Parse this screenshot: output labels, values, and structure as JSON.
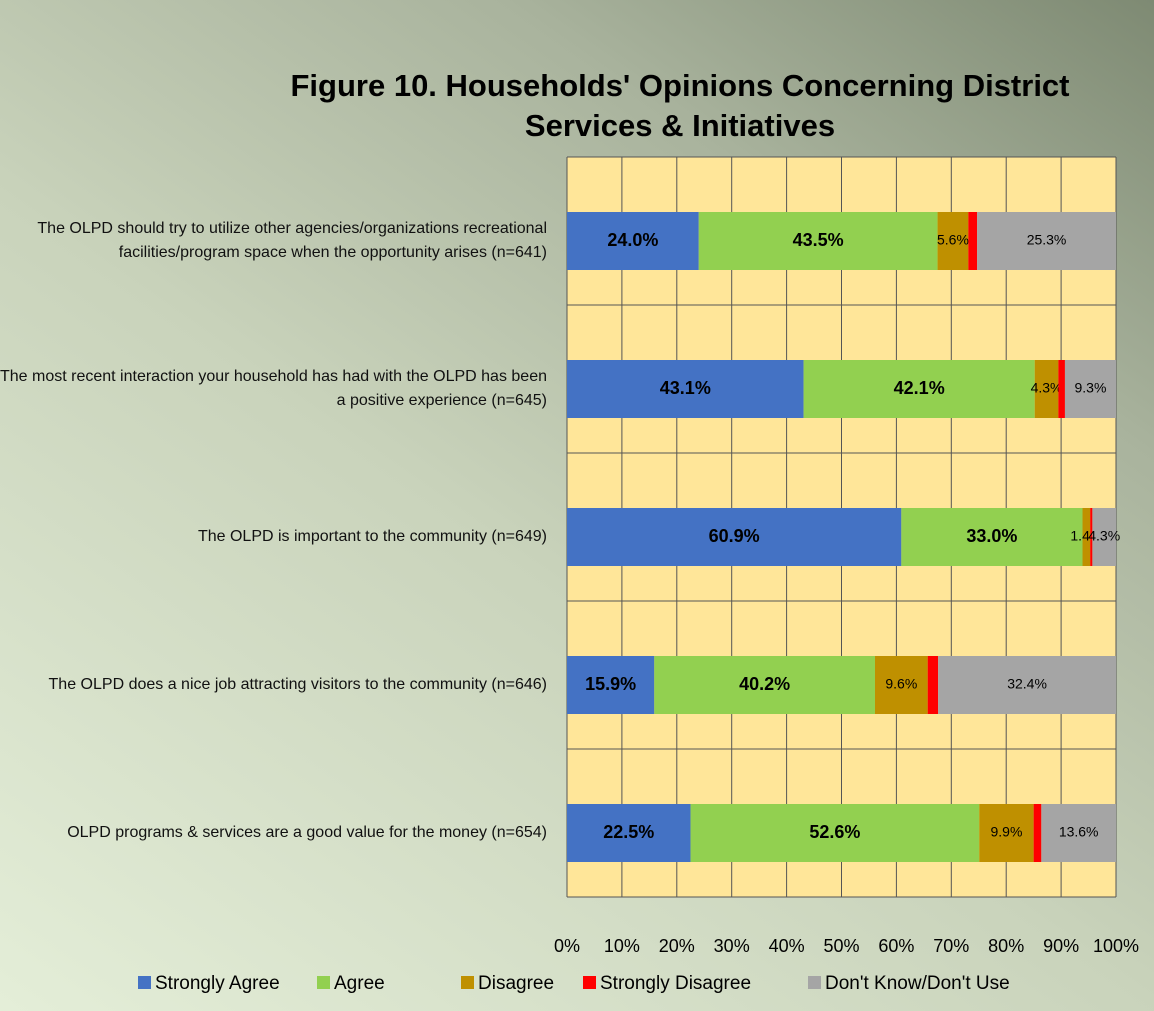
{
  "chart_data": {
    "type": "stacked_bar_horizontal",
    "title": [
      "Figure 10.  Households' Opinions Concerning District",
      "Services & Initiatives"
    ],
    "categories": [
      "The OLPD should try to utilize other agencies/organizations recreational facilities/program space when the opportunity arises (n=641)",
      "The most recent interaction your household has had with the OLPD has been a positive experience (n=645)",
      "The OLPD is important to the community (n=649)",
      "The OLPD does a nice job attracting visitors to the community (n=646)",
      "OLPD programs & services are a good value for the money (n=654)"
    ],
    "series": [
      {
        "name": "Strongly Agree",
        "color": "#4472c4",
        "values": [
          24.0,
          43.1,
          60.9,
          15.9,
          22.5
        ],
        "value_labels": [
          "24.0%",
          "43.1%",
          "60.9%",
          "15.9%",
          "22.5%"
        ]
      },
      {
        "name": "Agree",
        "color": "#92d050",
        "values": [
          43.5,
          42.1,
          33.0,
          40.2,
          52.6
        ],
        "value_labels": [
          "43.5%",
          "42.1%",
          "33.0%",
          "40.2%",
          "52.6%"
        ]
      },
      {
        "name": "Disagree",
        "color": "#bf9000",
        "values": [
          5.6,
          4.3,
          1.4,
          9.6,
          9.9
        ],
        "value_labels": [
          "5.6%",
          "4.3%",
          "1.4%",
          "9.6%",
          "9.9%"
        ]
      },
      {
        "name": "Strongly Disagree",
        "color": "#ff0000",
        "values": [
          1.6,
          1.2,
          0.4,
          1.9,
          1.4
        ]
      },
      {
        "name": "Don't Know/Don't Use",
        "color": "#a5a5a5",
        "values": [
          25.3,
          9.3,
          4.3,
          32.4,
          13.6
        ],
        "value_labels": [
          "25.3%",
          "9.3%",
          "4.3%",
          "32.4%",
          "13.6%"
        ]
      }
    ],
    "xlim": [
      0,
      100
    ],
    "xticks": [
      {
        "value": 0,
        "label": "0%"
      },
      {
        "value": 10,
        "label": "10%"
      },
      {
        "value": 20,
        "label": "20%"
      },
      {
        "value": 30,
        "label": "30%"
      },
      {
        "value": 40,
        "label": "40%"
      },
      {
        "value": 50,
        "label": "50%"
      },
      {
        "value": 60,
        "label": "60%"
      },
      {
        "value": 70,
        "label": "70%"
      },
      {
        "value": 80,
        "label": "80%"
      },
      {
        "value": 90,
        "label": "90%"
      },
      {
        "value": 100,
        "label": "100%"
      }
    ],
    "grid": true,
    "legend": "bottom",
    "plot_background": "#ffe699"
  }
}
